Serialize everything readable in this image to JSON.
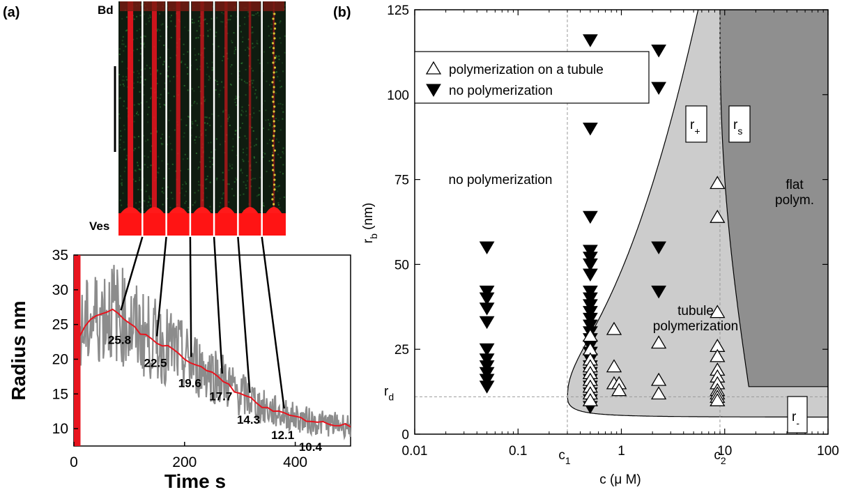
{
  "panels": {
    "a_label": "(a)",
    "b_label": "(b)"
  },
  "micrograph": {
    "top_label": "Bd",
    "bottom_label": "Ves",
    "strip_count": 7,
    "colors": {
      "tubule": "#e8141e",
      "vesicle": "#ff1a1a",
      "background": "#0d1a0d",
      "green_noise": "#2e7d32"
    }
  },
  "chart_data": [
    {
      "type": "line",
      "xlabel": "Time s",
      "ylabel": "Radius nm",
      "xlim": [
        0,
        500
      ],
      "ylim": [
        7.5,
        35
      ],
      "xticks": [
        0,
        200,
        400
      ],
      "yticks": [
        10,
        15,
        20,
        25,
        30,
        35
      ],
      "series": [
        {
          "color": "#e8141e",
          "x": [
            10,
            20,
            30,
            40,
            50,
            60,
            70,
            80,
            90,
            100,
            110,
            120,
            130,
            140,
            150,
            160,
            170,
            180,
            190,
            200,
            210,
            220,
            230,
            240,
            250,
            260,
            270,
            280,
            290,
            300,
            310,
            320,
            330,
            340,
            350,
            360,
            370,
            380,
            390,
            400,
            410,
            420,
            430,
            440,
            450,
            460,
            470,
            480,
            490,
            500
          ],
          "y": [
            23.0,
            24.5,
            25.5,
            26.0,
            26.5,
            26.8,
            27.0,
            26.5,
            26.0,
            25.0,
            24.5,
            23.8,
            23.5,
            23.0,
            22.5,
            22.0,
            21.8,
            21.5,
            20.8,
            20.0,
            19.6,
            19.2,
            18.8,
            18.4,
            18.0,
            17.7,
            17.0,
            16.3,
            15.5,
            15.0,
            14.6,
            14.3,
            13.6,
            13.1,
            12.8,
            12.5,
            12.3,
            12.1,
            11.9,
            11.6,
            11.4,
            11.2,
            11.0,
            10.9,
            10.8,
            10.7,
            10.6,
            10.6,
            10.5,
            10.4
          ]
        }
      ],
      "annotations": [
        "25.8",
        "22.5",
        "19.6",
        "17.7",
        "14.3",
        "12.1",
        "10.4"
      ],
      "annotation_x": [
        85,
        150,
        212,
        268,
        318,
        380,
        430
      ],
      "annotation_values": [
        25.8,
        22.5,
        19.6,
        17.7,
        14.3,
        12.1,
        10.4
      ],
      "callout_times": [
        85,
        150,
        212,
        268,
        318,
        380
      ],
      "highlight_bar": {
        "x": [
          0,
          12
        ],
        "color": "#e8141e"
      },
      "noise_color": "#8c8c8c"
    },
    {
      "type": "scatter",
      "xlabel": "c (μ M)",
      "ylabel_main": "r",
      "ylabel_sub": "b",
      "ylabel_unit": " (nm)",
      "xscale": "log",
      "xlim": [
        0.01,
        100
      ],
      "ylim": [
        0,
        125
      ],
      "xticks": [
        0.01,
        0.1,
        1,
        10,
        100
      ],
      "xtick_labels": [
        "0.01",
        "0.1",
        "1",
        "10",
        "100"
      ],
      "yticks": [
        0,
        25,
        50,
        75,
        100,
        125
      ],
      "c1": 0.3,
      "c2": 9.0,
      "rd": 11,
      "c1_label_main": "c",
      "c1_label_sub": "1",
      "c2_label_main": "c",
      "c2_label_sub": "2",
      "rd_label_main": "r",
      "rd_label_sub": "d",
      "box_labels": [
        {
          "main": "r",
          "sub": "+"
        },
        {
          "main": "r",
          "sub": "s"
        },
        {
          "main": "r",
          "sub": "-"
        }
      ],
      "region_labels": {
        "no_polymerization": "no polymerization",
        "tubule_line1": "tubule",
        "tubule_line2": "polymerization",
        "flat_line1": "flat",
        "flat_line2": "polym."
      },
      "region_colors": {
        "tubule": "#cccccc",
        "flat": "#8f8f8f"
      },
      "legend": {
        "placement": "top-left",
        "entries": [
          {
            "marker": "open-triangle-up",
            "label": "polymerization on a tubule"
          },
          {
            "marker": "filled-triangle-down",
            "label": "no polymerization"
          }
        ]
      },
      "series": [
        {
          "marker": "filled-triangle-down",
          "points": [
            [
              0.05,
              55
            ],
            [
              0.05,
              42
            ],
            [
              0.05,
              40
            ],
            [
              0.05,
              37
            ],
            [
              0.05,
              33
            ],
            [
              0.05,
              25
            ],
            [
              0.05,
              22
            ],
            [
              0.05,
              20
            ],
            [
              0.05,
              18
            ],
            [
              0.05,
              16
            ],
            [
              0.05,
              14
            ],
            [
              0.5,
              116
            ],
            [
              0.5,
              90
            ],
            [
              0.5,
              64
            ],
            [
              0.5,
              54
            ],
            [
              0.5,
              52
            ],
            [
              0.5,
              50
            ],
            [
              0.5,
              47
            ],
            [
              0.5,
              42
            ],
            [
              0.5,
              40
            ],
            [
              0.5,
              38
            ],
            [
              0.5,
              36
            ],
            [
              0.5,
              34
            ],
            [
              0.5,
              32
            ],
            [
              0.5,
              30
            ],
            [
              0.5,
              28
            ],
            [
              0.5,
              26
            ],
            [
              0.5,
              24
            ],
            [
              0.5,
              22
            ],
            [
              0.5,
              20
            ],
            [
              0.5,
              18
            ],
            [
              0.5,
              16
            ],
            [
              0.5,
              14
            ],
            [
              0.5,
              12
            ],
            [
              0.5,
              10
            ],
            [
              0.5,
              8
            ],
            [
              2.3,
              113
            ],
            [
              2.3,
              102
            ],
            [
              2.3,
              55
            ],
            [
              2.3,
              42
            ]
          ]
        },
        {
          "marker": "open-triangle-up",
          "points": [
            [
              0.5,
              29
            ],
            [
              0.5,
              25
            ],
            [
              0.5,
              22
            ],
            [
              0.5,
              20
            ],
            [
              0.5,
              18
            ],
            [
              0.5,
              16
            ],
            [
              0.5,
              14
            ],
            [
              0.5,
              12
            ],
            [
              0.5,
              10
            ],
            [
              0.85,
              31
            ],
            [
              0.85,
              20
            ],
            [
              0.85,
              15
            ],
            [
              0.95,
              15
            ],
            [
              0.95,
              13
            ],
            [
              2.3,
              27
            ],
            [
              2.3,
              16
            ],
            [
              2.3,
              12
            ],
            [
              8.5,
              74
            ],
            [
              8.5,
              64
            ],
            [
              8.5,
              36
            ],
            [
              8.5,
              26
            ],
            [
              8.5,
              23
            ],
            [
              8.5,
              19
            ],
            [
              8.5,
              17
            ],
            [
              8.5,
              15
            ],
            [
              8.5,
              13
            ],
            [
              8.5,
              12
            ],
            [
              8.5,
              11
            ],
            [
              8.5,
              10
            ]
          ]
        }
      ]
    }
  ]
}
